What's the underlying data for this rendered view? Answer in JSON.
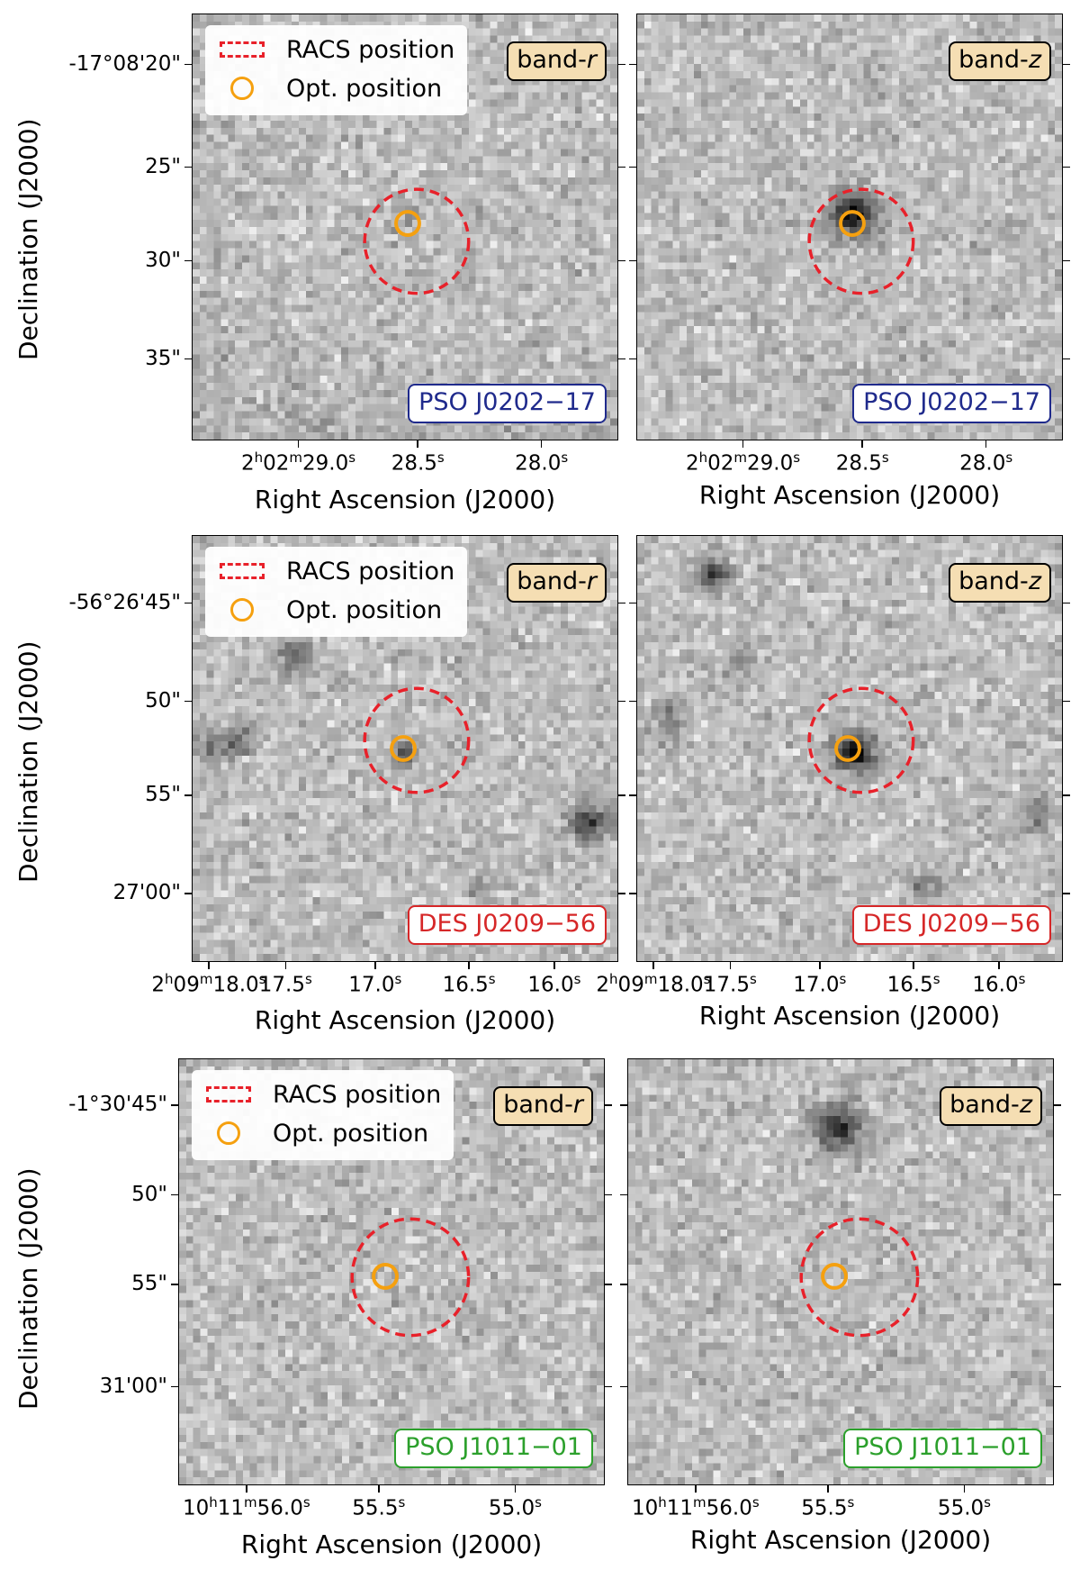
{
  "legend": {
    "racs_label": "RACS position",
    "opt_label": "Opt. position"
  },
  "axis": {
    "xlabel": "Right Ascension (J2000)",
    "ylabel": "Declination (J2000)"
  },
  "colors": {
    "racs": "#e8212a",
    "optical": "#f5a00f",
    "pso0202": "#1f2a8c",
    "des0209": "#d62728",
    "pso1011": "#2ca02c"
  },
  "rows": [
    {
      "name": "PSO J0202−17",
      "name_color": "#1f2a8c",
      "yticks": [
        "-17°08'20\"",
        "25\"",
        "30\"",
        "35\""
      ],
      "xticks_r": [
        {
          "h": "2",
          "hu": "h",
          "m": "02",
          "mu": "m",
          "s": "29.0",
          "su": "s"
        },
        {
          "s": "28.5",
          "su": "s"
        },
        {
          "s": "28.0",
          "su": "s"
        }
      ],
      "xticks_z": [
        {
          "h": "2",
          "hu": "h",
          "m": "02",
          "mu": "m",
          "s": "29.0",
          "su": "s"
        },
        {
          "s": "28.5",
          "su": "s"
        },
        {
          "s": "28.0",
          "su": "s"
        }
      ],
      "bands": [
        {
          "label": "band-",
          "filter": "r"
        },
        {
          "label": "band-",
          "filter": "z"
        }
      ]
    },
    {
      "name": "DES J0209−56",
      "name_color": "#d62728",
      "yticks": [
        "-56°26'45\"",
        "50\"",
        "55\"",
        "27'00\""
      ],
      "xticks_r": [
        {
          "h": "2",
          "hu": "h",
          "m": "09",
          "mu": "m",
          "s": "18.0",
          "su": "s"
        },
        {
          "s": "17.5",
          "su": "s"
        },
        {
          "s": "17.0",
          "su": "s"
        },
        {
          "s": "16.5",
          "su": "s"
        },
        {
          "s": "16.0",
          "su": "s"
        }
      ],
      "xticks_z": [
        {
          "h": "2",
          "hu": "h",
          "m": "09",
          "mu": "m",
          "s": "18.0",
          "su": "s"
        },
        {
          "s": "17.5",
          "su": "s"
        },
        {
          "s": "17.0",
          "su": "s"
        },
        {
          "s": "16.5",
          "su": "s"
        },
        {
          "s": "16.0",
          "su": "s"
        }
      ],
      "bands": [
        {
          "label": "band-",
          "filter": "r"
        },
        {
          "label": "band-",
          "filter": "z"
        }
      ]
    },
    {
      "name": "PSO J1011−01",
      "name_color": "#2ca02c",
      "yticks": [
        "-1°30'45\"",
        "50\"",
        "55\"",
        "31'00\""
      ],
      "xticks_r": [
        {
          "h": "10",
          "hu": "h",
          "m": "11",
          "mu": "m",
          "s": "56.0",
          "su": "s"
        },
        {
          "s": "55.5",
          "su": "s"
        },
        {
          "s": "55.0",
          "su": "s"
        }
      ],
      "xticks_z": [
        {
          "h": "10",
          "hu": "h",
          "m": "11",
          "mu": "m",
          "s": "56.0",
          "su": "s"
        },
        {
          "s": "55.5",
          "su": "s"
        },
        {
          "s": "55.0",
          "su": "s"
        }
      ],
      "bands": [
        {
          "label": "band-",
          "filter": "r"
        },
        {
          "label": "band-",
          "filter": "z"
        }
      ]
    }
  ]
}
